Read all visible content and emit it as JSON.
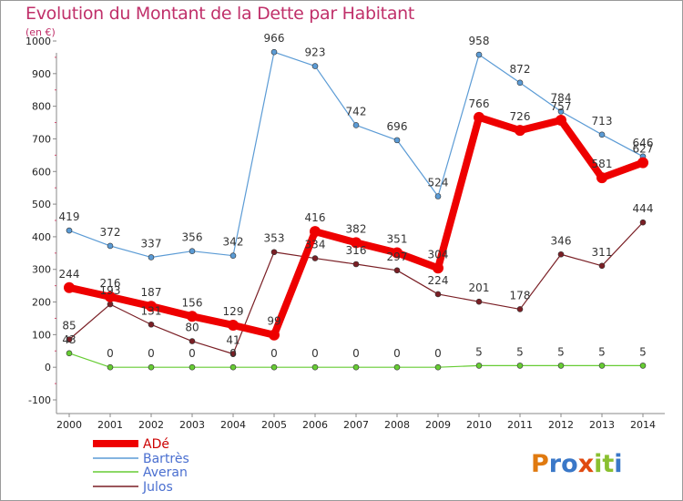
{
  "title": "Evolution du Montant de la Dette par Habitant",
  "unit": "(en €)",
  "logo_text": "Proxiti",
  "chart_data": {
    "type": "line",
    "x": [
      "2000",
      "2001",
      "2002",
      "2003",
      "2004",
      "2005",
      "2006",
      "2007",
      "2008",
      "2009",
      "2010",
      "2011",
      "2012",
      "2013",
      "2014"
    ],
    "y_ticks": [
      "1000",
      "900",
      "800",
      "700",
      "600",
      "500",
      "400",
      "300",
      "200",
      "100",
      "0",
      "-100"
    ],
    "ylim": [
      -100,
      1000
    ],
    "grid": false,
    "legend_position": "bottom-left",
    "series": [
      {
        "name": "ADé",
        "color": "#ee0000",
        "values": [
          244,
          216,
          187,
          156,
          129,
          99,
          416,
          382,
          351,
          304,
          766,
          726,
          757,
          581,
          627
        ],
        "labels": [
          "244",
          "216",
          "187",
          "156",
          "129",
          "99",
          "416",
          "382",
          "351",
          "304",
          "766",
          "726",
          "757",
          "581",
          "627"
        ]
      },
      {
        "name": "Bartrès",
        "color": "#5b9bd5",
        "values": [
          419,
          372,
          337,
          356,
          342,
          966,
          923,
          742,
          696,
          524,
          958,
          872,
          784,
          713,
          646
        ],
        "labels": [
          "419",
          "372",
          "337",
          "356",
          "342",
          "966",
          "923",
          "742",
          "696",
          "524",
          "958",
          "872",
          "784",
          "713",
          "646"
        ]
      },
      {
        "name": "Averan",
        "color": "#66cc33",
        "values": [
          43,
          0,
          0,
          0,
          0,
          0,
          0,
          0,
          0,
          0,
          5,
          5,
          5,
          5,
          5
        ],
        "labels": [
          "43",
          "0",
          "0",
          "0",
          "0",
          "0",
          "0",
          "0",
          "0",
          "0",
          "5",
          "5",
          "5",
          "5",
          "5"
        ]
      },
      {
        "name": "Julos",
        "color": "#7a1f25",
        "values": [
          85,
          193,
          131,
          80,
          41,
          353,
          334,
          316,
          297,
          224,
          201,
          178,
          346,
          311,
          444
        ],
        "labels": [
          "85",
          "193",
          "131",
          "80",
          "41",
          "353",
          "334",
          "316",
          "297",
          "224",
          "201",
          "178",
          "346",
          "311",
          "444"
        ]
      }
    ]
  }
}
